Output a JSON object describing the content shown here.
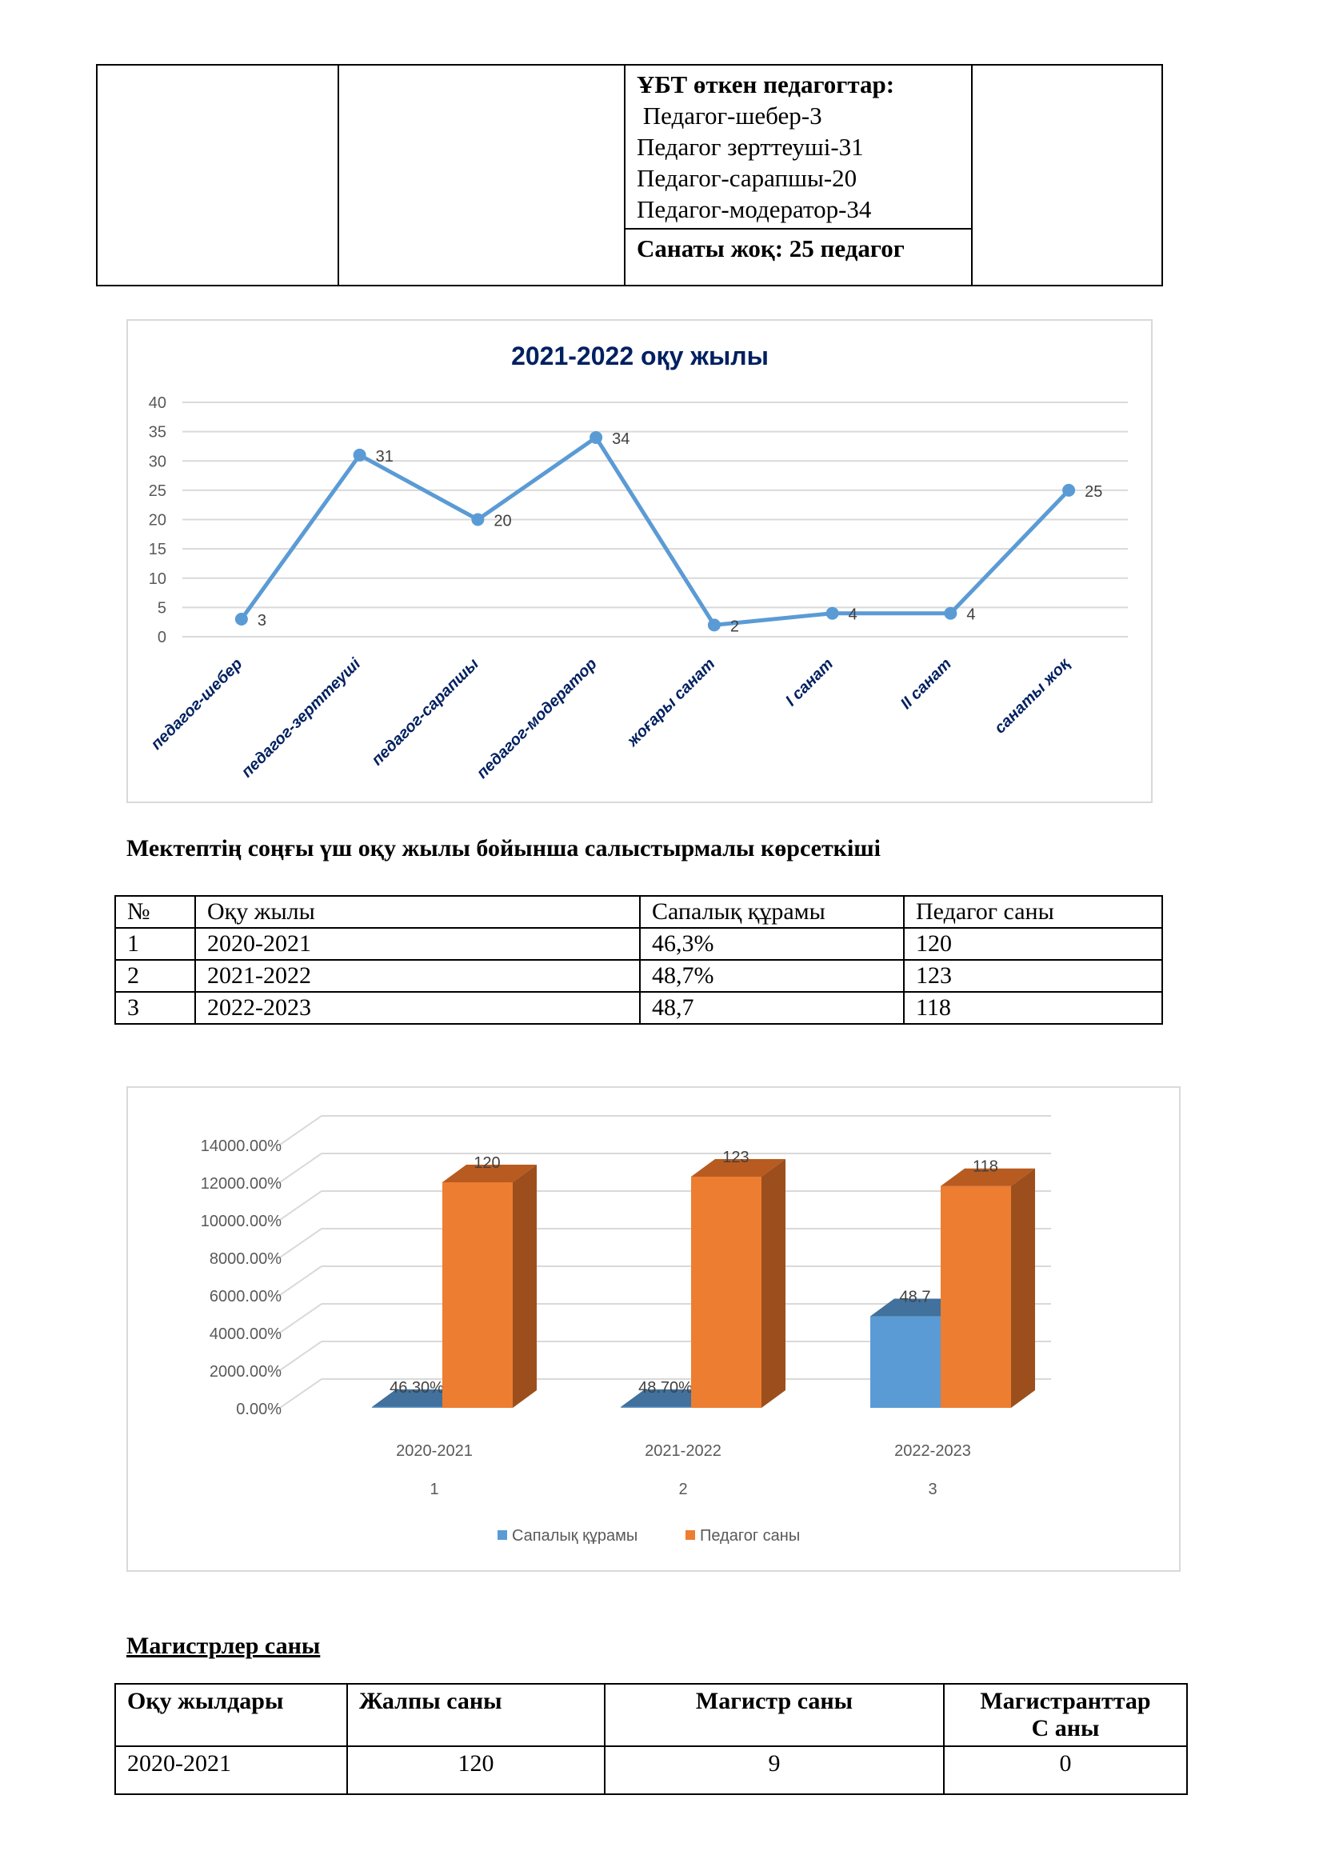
{
  "top_table": {
    "heading": "ҰБТ өткен педагогтар:",
    "lines": [
      " Педагог-шебер-3",
      "Педагог зерттеуші-31",
      "Педагог-сарапшы-20",
      "Педагог-модератор-34"
    ],
    "no_category": "Санаты жоқ: 25 педагог"
  },
  "chart_data": [
    {
      "type": "line",
      "title": "2021-2022 оқу жылы",
      "categories": [
        "педагог-шебер",
        "педагог-зерттеуші",
        "педагог-сарапшы",
        "педагог-модератор",
        "жоғары санат",
        "I санат",
        "II санат",
        "санаты жоқ"
      ],
      "values": [
        3,
        31,
        20,
        34,
        2,
        4,
        4,
        25
      ],
      "yticks": [
        "0",
        "5",
        "10",
        "15",
        "20",
        "25",
        "30",
        "35",
        "40"
      ],
      "ylim": [
        0,
        40
      ],
      "grid": true,
      "color": "#5b9bd5",
      "label_color": "#002060"
    },
    {
      "type": "bar",
      "categories": [
        "2020-2021",
        "2021-2022",
        "2022-2023"
      ],
      "category_index": [
        "1",
        "2",
        "3"
      ],
      "series": [
        {
          "name": "Сапалық құрамы",
          "values": [
            0.463,
            0.487,
            48.7
          ],
          "labels": [
            "46.30%",
            "48.70%",
            "48.7"
          ],
          "color": "#5b9bd5"
        },
        {
          "name": "Педагог саны",
          "values": [
            120,
            123,
            118
          ],
          "labels": [
            "120",
            "123",
            "118"
          ],
          "color": "#ed7d31"
        }
      ],
      "yticks": [
        "0.00%",
        "2000.00%",
        "4000.00%",
        "6000.00%",
        "8000.00%",
        "10000.00%",
        "12000.00%",
        "14000.00%"
      ],
      "ylim": [
        0,
        140
      ],
      "legend": "bottom"
    }
  ],
  "comparison": {
    "heading": "Мектептің соңғы үш оқу жылы бойынша  салыстырмалы  көрсеткіші",
    "headers": [
      "№",
      "Оқу жылы",
      "Сапалық құрамы",
      "Педагог саны"
    ],
    "rows": [
      [
        "1",
        "2020-2021",
        "46,3%",
        "120"
      ],
      [
        "2",
        "2021-2022",
        "48,7%",
        "123"
      ],
      [
        "3",
        "2022-2023",
        "48,7",
        "118"
      ]
    ]
  },
  "masters": {
    "heading": "Магистрлер саны",
    "headers": [
      "Оқу жылдары",
      "Жалпы саны",
      "Магистр саны",
      "Магистранттар",
      "С аны"
    ],
    "rows": [
      [
        "2020-2021",
        "120",
        "9",
        "0"
      ]
    ]
  }
}
